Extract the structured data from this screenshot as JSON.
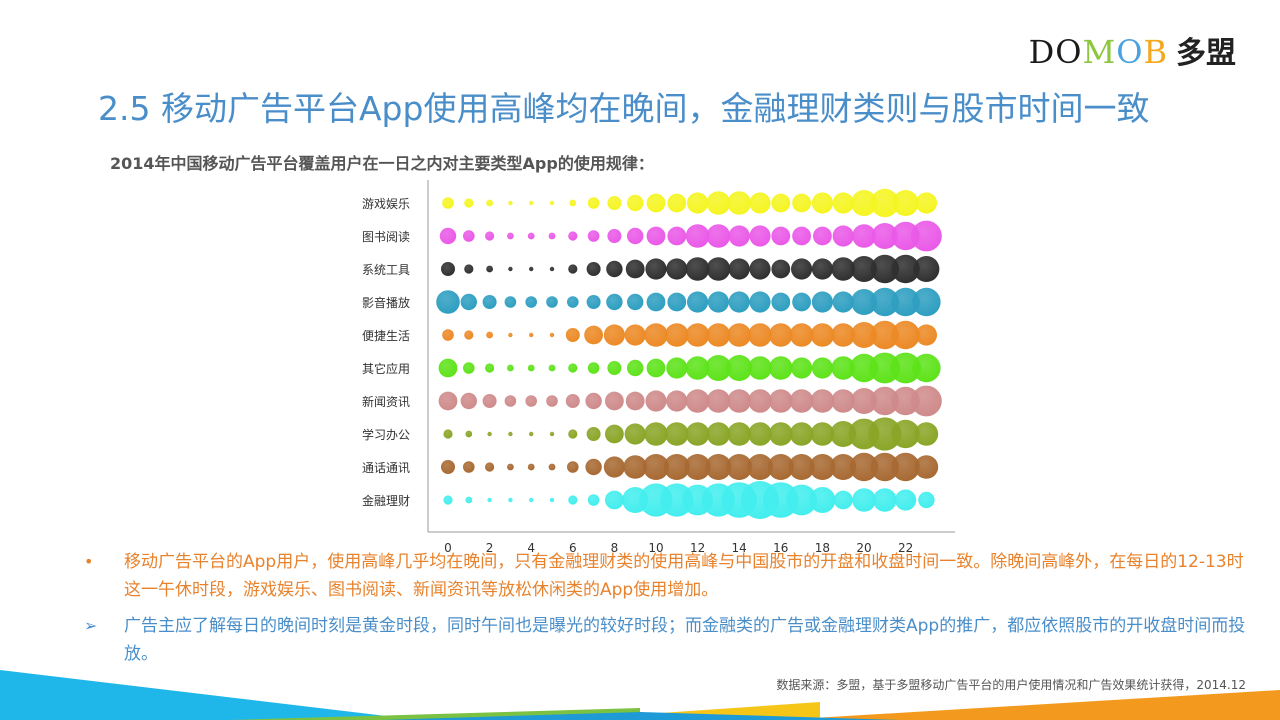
{
  "logo": {
    "letters": [
      {
        "char": "D",
        "color": "#1a1a1a"
      },
      {
        "char": "O",
        "color": "#1a1a1a"
      },
      {
        "char": "M",
        "color": "#8dc63f"
      },
      {
        "char": "O",
        "color": "#4aa3df"
      },
      {
        "char": "B",
        "color": "#f4a81d"
      }
    ],
    "cn": "多盟"
  },
  "page_title": "2.5 移动广告平台App使用高峰均在晚间，金融理财类则与股市时间一致",
  "chart_title": "2014年中国移动广告平台覆盖用户在一日之内对主要类型App的使用规律：",
  "chart_data": {
    "type": "scatter",
    "subtype": "bubble",
    "title": "2014年中国移动广告平台覆盖用户在一日之内对主要类型App的使用规律：",
    "xlabel": "",
    "ylabel": "",
    "x_ticks": [
      0,
      2,
      4,
      6,
      8,
      10,
      12,
      14,
      16,
      18,
      20,
      22
    ],
    "hours": [
      0,
      1,
      2,
      3,
      4,
      5,
      6,
      7,
      8,
      9,
      10,
      11,
      12,
      13,
      14,
      15,
      16,
      17,
      18,
      19,
      20,
      21,
      22,
      23
    ],
    "series": [
      {
        "name": "游戏娱乐",
        "color": "#f5f523",
        "values": [
          4,
          3,
          2,
          1,
          1,
          1,
          2,
          4,
          5,
          6,
          7,
          7,
          8,
          9,
          9,
          8,
          7,
          7,
          8,
          8,
          10,
          11,
          10,
          8
        ]
      },
      {
        "name": "图书阅读",
        "color": "#ea5ae8",
        "values": [
          6,
          4,
          3,
          2,
          2,
          2,
          3,
          4,
          5,
          6,
          7,
          7,
          9,
          9,
          8,
          8,
          7,
          7,
          7,
          8,
          9,
          10,
          11,
          12
        ]
      },
      {
        "name": "系统工具",
        "color": "#303030",
        "values": [
          5,
          3,
          2,
          1,
          1,
          1,
          3,
          5,
          6,
          7,
          8,
          8,
          9,
          9,
          8,
          8,
          7,
          8,
          8,
          9,
          10,
          11,
          11,
          10
        ]
      },
      {
        "name": "影音播放",
        "color": "#2f9fc1",
        "values": [
          9,
          6,
          5,
          4,
          4,
          4,
          4,
          5,
          6,
          6,
          7,
          7,
          8,
          8,
          8,
          8,
          7,
          7,
          8,
          8,
          10,
          11,
          11,
          11
        ]
      },
      {
        "name": "便捷生活",
        "color": "#ec8a26",
        "values": [
          4,
          3,
          2,
          1,
          1,
          1,
          5,
          7,
          8,
          8,
          9,
          9,
          9,
          9,
          9,
          9,
          9,
          9,
          9,
          9,
          10,
          11,
          11,
          8
        ]
      },
      {
        "name": "其它应用",
        "color": "#5ee31a",
        "values": [
          7,
          4,
          3,
          2,
          2,
          2,
          3,
          4,
          5,
          6,
          7,
          8,
          9,
          10,
          10,
          9,
          9,
          8,
          8,
          9,
          11,
          12,
          12,
          11
        ]
      },
      {
        "name": "新闻资讯",
        "color": "#cf8b8b",
        "values": [
          7,
          6,
          5,
          4,
          4,
          4,
          5,
          6,
          7,
          7,
          8,
          8,
          9,
          9,
          9,
          9,
          9,
          9,
          9,
          9,
          10,
          11,
          11,
          12
        ]
      },
      {
        "name": "学习办公",
        "color": "#8aa628",
        "values": [
          3,
          2,
          1,
          1,
          1,
          1,
          3,
          5,
          7,
          8,
          9,
          9,
          9,
          9,
          9,
          9,
          9,
          9,
          9,
          10,
          12,
          13,
          11,
          9
        ]
      },
      {
        "name": "通话通讯",
        "color": "#a86a33",
        "values": [
          5,
          4,
          3,
          2,
          2,
          2,
          4,
          6,
          8,
          9,
          10,
          10,
          10,
          10,
          10,
          10,
          10,
          10,
          10,
          10,
          11,
          11,
          11,
          9
        ]
      },
      {
        "name": "金融理财",
        "color": "#44eeee",
        "values": [
          3,
          2,
          1,
          1,
          1,
          1,
          3,
          4,
          7,
          10,
          13,
          13,
          12,
          13,
          14,
          15,
          14,
          12,
          10,
          7,
          9,
          9,
          8,
          6
        ]
      }
    ],
    "legend": "none",
    "grid": false
  },
  "bullets": [
    {
      "mark": "•",
      "text": "移动广告平台的App用户，使用高峰几乎均在晚间，只有金融理财类的使用高峰与中国股市的开盘和收盘时间一致。除晚间高峰外，在每日的12-13时这一午休时段，游戏娱乐、图书阅读、新闻资讯等放松休闲类的App使用增加。"
    },
    {
      "mark": "➢",
      "text": "广告主应了解每日的晚间时刻是黄金时段，同时午间也是曝光的较好时段；而金融类的广告或金融理财类App的推广，都应依照股市的开收盘时间而投放。"
    }
  ],
  "source": "数据来源：多盟，基于多盟移动广告平台的用户使用情况和广告效果统计获得，2014.12",
  "footer_colors": [
    "#1fb6ea",
    "#7cc242",
    "#f5c518",
    "#f39a1e",
    "#1e9ad6"
  ]
}
